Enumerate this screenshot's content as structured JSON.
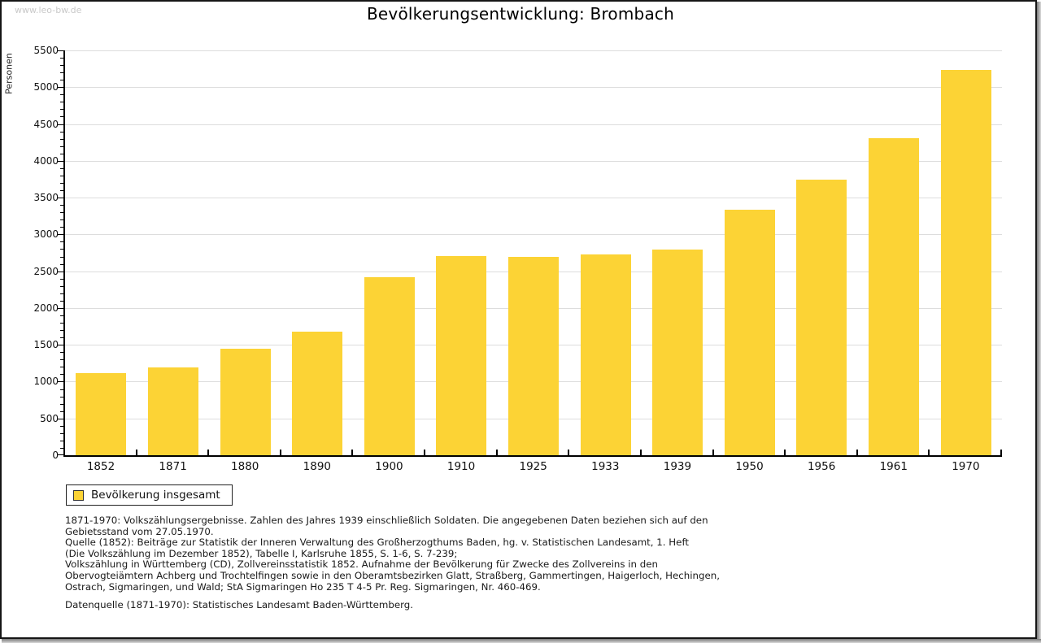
{
  "window": {
    "watermark": "www.leo-bw.de"
  },
  "chart_data": {
    "type": "bar",
    "title": "Bevölkerungsentwicklung: Brombach",
    "categories": [
      "1852",
      "1871",
      "1880",
      "1890",
      "1900",
      "1910",
      "1925",
      "1933",
      "1939",
      "1950",
      "1956",
      "1961",
      "1970"
    ],
    "series": [
      {
        "name": "Bevölkerung insgesamt",
        "values": [
          1110,
          1190,
          1445,
          1680,
          2420,
          2705,
          2700,
          2730,
          2795,
          3330,
          3740,
          4305,
          5230
        ]
      }
    ],
    "xlabel": "",
    "ylabel": "Personen",
    "ylim": [
      0,
      5500
    ],
    "ytick_step": 500,
    "yminor_step": 100,
    "grid": true,
    "legend_position": "bottom-left",
    "bar_color": "#FCD335"
  },
  "legend": {
    "label": "Bevölkerung insgesamt",
    "swatch_color": "#FCD335"
  },
  "footnotes": {
    "lines": [
      "1871-1970: Volkszählungsergebnisse. Zahlen des Jahres 1939 einschließlich Soldaten. Die angegebenen Daten beziehen sich auf den",
      "Gebietsstand vom 27.05.1970.",
      "Quelle (1852): Beiträge zur Statistik der Inneren Verwaltung des Großherzogthums Baden, hg. v. Statistischen Landesamt, 1. Heft",
      "(Die Volkszählung im Dezember 1852), Tabelle I, Karlsruhe 1855, S. 1-6, S. 7-239;",
      "Volkszählung in Württemberg (CD), Zollvereinsstatistik 1852. Aufnahme der Bevölkerung für Zwecke des Zollvereins in den",
      "Obervogteiämtern Achberg und Trochtelfingen sowie in den Oberamtsbezirken Glatt, Straßberg, Gammertingen, Haigerloch, Hechingen,",
      "Ostrach, Sigmaringen, und Wald; StA Sigmaringen Ho 235 T 4-5 Pr. Reg. Sigmaringen, Nr. 460-469."
    ],
    "datasource": "Datenquelle (1871-1970): Statistisches Landesamt Baden-Württemberg."
  },
  "colors": {
    "bar": "#FCD335",
    "grid": "#DDDDDD",
    "axis": "#000000",
    "frame": "#151515",
    "watermark": "#C9C9C9"
  }
}
